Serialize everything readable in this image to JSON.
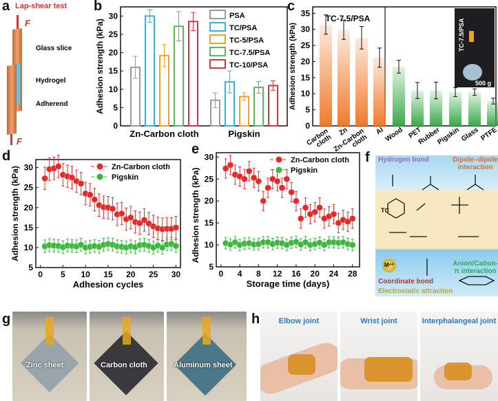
{
  "panel_labels": {
    "a": "a",
    "b": "b",
    "c": "c",
    "d": "d",
    "e": "e",
    "f": "f",
    "g": "g",
    "h": "h"
  },
  "panel_a": {
    "title": "Lap-shear test",
    "force": "F",
    "glass": "Glass slice",
    "hydrogel": "Hydrogel",
    "adherend": "Adherend",
    "colors": {
      "title": "#e0302a",
      "adherend": "#e8965a"
    }
  },
  "chart_data": [
    {
      "id": "b",
      "type": "bar",
      "categories": [
        "Zn-Carbon cloth",
        "Pigskin"
      ],
      "ylabel": "Adhesion strength (kPa)",
      "ylim": [
        0,
        32.5
      ],
      "yticks": [
        0,
        5,
        10,
        15,
        20,
        25,
        30
      ],
      "legend": "top-right",
      "fill": "none",
      "series": [
        {
          "name": "PSA",
          "color": "#9a9a9a",
          "values": [
            16,
            7
          ],
          "errors": [
            3,
            2
          ]
        },
        {
          "name": "TC/PSA",
          "color": "#2fb4e6",
          "values": [
            30,
            12
          ],
          "errors": [
            1.7,
            3
          ]
        },
        {
          "name": "TC-5/PSA",
          "color": "#f0a030",
          "values": [
            19.2,
            8
          ],
          "errors": [
            3,
            1
          ]
        },
        {
          "name": "TC-7.5/PSA",
          "color": "#5cb85c",
          "values": [
            27.2,
            10.5
          ],
          "errors": [
            4,
            1.6
          ]
        },
        {
          "name": "TC-10/PSA",
          "color": "#d9333f",
          "values": [
            28.5,
            11
          ],
          "errors": [
            2.5,
            1.3
          ]
        }
      ]
    },
    {
      "id": "c",
      "type": "bar",
      "annotation": "TC-7.5/PSA",
      "inset_label": "TC-7.5/PSA",
      "inset_weight": "500 g",
      "ylabel": "Adhesion  strength (kPa)",
      "ylim": [
        0,
        37
      ],
      "yticks": [
        0,
        5,
        10,
        15,
        20,
        25,
        30,
        35
      ],
      "categories": [
        "Carbon cloth",
        "Zn",
        "Zn-Carbon cloth",
        "Al",
        "Wood",
        "PET",
        "Rubber",
        "Pigskin",
        "Glass",
        "PTFE"
      ],
      "values": [
        31.5,
        29.9,
        27.4,
        21.2,
        18.4,
        11,
        11,
        10.5,
        10.5,
        7.7
      ],
      "errors": [
        3,
        3,
        3.5,
        3,
        2,
        2.5,
        2.6,
        1.4,
        1,
        0.9
      ],
      "group_colors": {
        "metal": "#f07a2a",
        "nonmetal": "#3aaa4a"
      },
      "metal_count": 4
    },
    {
      "id": "d",
      "type": "scatter",
      "xlabel": "Adhesion cycles",
      "ylabel": "Adhesion strength (kPa)",
      "xlim": [
        -1,
        31
      ],
      "ylim": [
        5,
        32
      ],
      "xticks": [
        0,
        5,
        10,
        15,
        20,
        25,
        30
      ],
      "yticks": [
        5,
        10,
        15,
        20,
        25,
        30
      ],
      "legend": "top-right",
      "x": [
        1,
        2,
        3,
        4,
        5,
        6,
        7,
        8,
        9,
        10,
        11,
        12,
        13,
        14,
        15,
        16,
        17,
        18,
        19,
        20,
        21,
        22,
        23,
        24,
        25,
        26,
        27,
        28,
        29,
        30
      ],
      "series": [
        {
          "name": "Zn-Carbon cloth",
          "color": "#e52a2a",
          "values": [
            27.3,
            29.6,
            29.8,
            30.3,
            28.2,
            27.8,
            27.5,
            26.6,
            26.0,
            23.5,
            23.2,
            22.0,
            20.6,
            20.1,
            20.0,
            19.7,
            18.3,
            18.5,
            17.1,
            17.5,
            16.4,
            16.1,
            16.9,
            16.0,
            15.3,
            14.8,
            14.6,
            14.7,
            14.7,
            15.0
          ],
          "error": 2.8
        },
        {
          "name": "Pigskin",
          "color": "#3cb83c",
          "values": [
            10.3,
            10.6,
            10.5,
            10.4,
            10.1,
            10.5,
            10.4,
            10.3,
            10.7,
            10.0,
            10.2,
            10.4,
            10.2,
            10.7,
            10.9,
            10.7,
            10.3,
            10.2,
            10.0,
            10.3,
            10.1,
            10.6,
            10.7,
            10.4,
            10.0,
            10.5,
            10.0,
            10.8,
            10.9,
            10.4
          ],
          "error": 1.6
        }
      ]
    },
    {
      "id": "e",
      "type": "scatter",
      "xlabel": "Storage time (days)",
      "ylabel": "Adhesion strength (kPa)",
      "xlim": [
        -1,
        29.5
      ],
      "ylim": [
        5,
        31
      ],
      "xticks": [
        0,
        4,
        8,
        12,
        16,
        20,
        24,
        28
      ],
      "yticks": [
        5,
        10,
        15,
        20,
        25,
        30
      ],
      "legend": "top-right",
      "x": [
        1,
        2,
        3,
        4,
        5,
        6,
        7,
        8,
        9,
        10,
        11,
        12,
        13,
        14,
        15,
        16,
        17,
        18,
        19,
        20,
        21,
        22,
        23,
        24,
        25,
        26,
        27,
        28
      ],
      "series": [
        {
          "name": "Zn-Carbon cloth",
          "color": "#e52a2a",
          "values": [
            27.4,
            28.2,
            26.0,
            25.6,
            25.0,
            26.8,
            25.3,
            24.5,
            20.0,
            23.0,
            25.0,
            24.5,
            23.0,
            25.0,
            22.0,
            20.0,
            16.0,
            18.5,
            17.0,
            17.5,
            18.5,
            16.0,
            16.5,
            17.0,
            15.0,
            15.7,
            15.3,
            16.0
          ],
          "error": 2.2
        },
        {
          "name": "Pigskin",
          "color": "#3cb83c",
          "values": [
            10.4,
            10.1,
            10.6,
            10.0,
            10.3,
            10.4,
            10.1,
            10.2,
            10.6,
            10.6,
            10.2,
            10.5,
            10.4,
            10.0,
            10.5,
            10.7,
            10.1,
            10.6,
            10.0,
            10.2,
            10.5,
            10.0,
            10.6,
            10.6,
            10.5,
            10.6,
            10.2,
            10.0
          ],
          "error": 1.3
        }
      ]
    }
  ],
  "panel_f": {
    "hydrogen": "Hydrogen bond",
    "dipole": "Dipole–dipole interaction",
    "coordinate": "Coordinate bond",
    "anion": "Anion/Cation-π interaction",
    "electrostatic": "Electrostatic attraction",
    "metal": "Mⁿ⁺",
    "tc": "TC",
    "colors": {
      "hydrogen": "#9a6ac8",
      "dipole": "#d0703a",
      "coordinate": "#c8283a",
      "anion": "#2aa860",
      "electrostatic": "#b8a830"
    }
  },
  "panel_g": {
    "photos": [
      "Zinc sheet",
      "Carbon cloth",
      "Aluminum sheet"
    ]
  },
  "panel_h": {
    "photos": [
      "Elbow joint",
      "Wrist joint",
      "Interphalangeal joint"
    ]
  }
}
